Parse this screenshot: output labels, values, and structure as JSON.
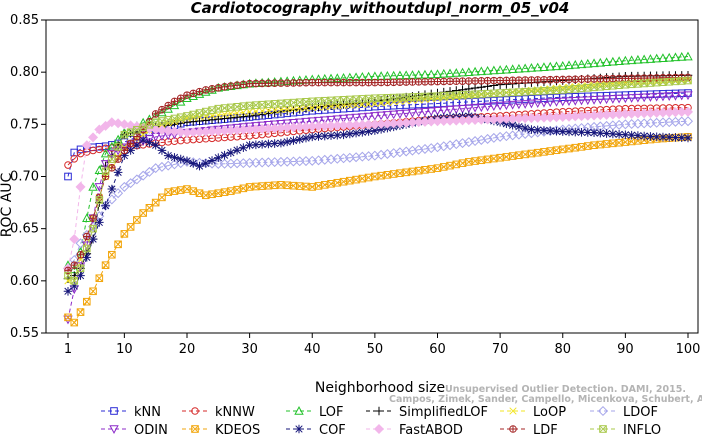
{
  "chart_data": {
    "type": "line",
    "title": "Cardiotocography_withoutdupl_norm_05_v04",
    "xlabel": "Neighborhood size",
    "ylabel": "ROC AUC",
    "xlim": [
      1,
      100
    ],
    "ylim": [
      0.55,
      0.85
    ],
    "xticks": [
      1,
      10,
      20,
      30,
      40,
      50,
      60,
      70,
      80,
      90,
      100
    ],
    "yticks": [
      0.55,
      0.6,
      0.65,
      0.7,
      0.75,
      0.8,
      0.85
    ],
    "ytick_labels": [
      "0.55",
      "0.60",
      "0.65",
      "0.70",
      "0.75",
      "0.80",
      "0.85"
    ],
    "grid": false,
    "legend_position": "bottom",
    "watermark": [
      "Unsupervised Outlier Detection. DAMI, 2015.",
      "Campos, Zimek, Sander, Campello, Micenkova, Schubert, Assent, Houle"
    ],
    "series": [
      {
        "name": "kNN",
        "color": "#2b2bd6",
        "marker": "square",
        "points": [
          [
            1,
            0.7
          ],
          [
            2,
            0.723
          ],
          [
            3,
            0.726
          ],
          [
            5,
            0.728
          ],
          [
            7,
            0.729
          ],
          [
            10,
            0.733
          ],
          [
            15,
            0.745
          ],
          [
            20,
            0.752
          ],
          [
            30,
            0.757
          ],
          [
            40,
            0.763
          ],
          [
            50,
            0.767
          ],
          [
            60,
            0.77
          ],
          [
            70,
            0.773
          ],
          [
            80,
            0.776
          ],
          [
            90,
            0.778
          ],
          [
            100,
            0.78
          ]
        ]
      },
      {
        "name": "kNNW",
        "color": "#d62a2a",
        "marker": "circle",
        "points": [
          [
            1,
            0.711
          ],
          [
            2,
            0.717
          ],
          [
            3,
            0.722
          ],
          [
            5,
            0.725
          ],
          [
            7,
            0.727
          ],
          [
            10,
            0.728
          ],
          [
            15,
            0.732
          ],
          [
            20,
            0.735
          ],
          [
            30,
            0.739
          ],
          [
            40,
            0.745
          ],
          [
            50,
            0.75
          ],
          [
            60,
            0.755
          ],
          [
            70,
            0.758
          ],
          [
            80,
            0.762
          ],
          [
            90,
            0.765
          ],
          [
            100,
            0.766
          ]
        ]
      },
      {
        "name": "LOF",
        "color": "#22c22a",
        "marker": "triangle-up",
        "points": [
          [
            1,
            0.615
          ],
          [
            2,
            0.611
          ],
          [
            3,
            0.628
          ],
          [
            4,
            0.66
          ],
          [
            5,
            0.69
          ],
          [
            7,
            0.722
          ],
          [
            10,
            0.742
          ],
          [
            15,
            0.758
          ],
          [
            20,
            0.775
          ],
          [
            25,
            0.785
          ],
          [
            30,
            0.789
          ],
          [
            40,
            0.793
          ],
          [
            50,
            0.796
          ],
          [
            60,
            0.798
          ],
          [
            70,
            0.802
          ],
          [
            80,
            0.806
          ],
          [
            90,
            0.811
          ],
          [
            100,
            0.815
          ]
        ]
      },
      {
        "name": "SimplifiedLOF",
        "color": "#000000",
        "marker": "plus",
        "points": [
          [
            1,
            0.602
          ],
          [
            2,
            0.605
          ],
          [
            3,
            0.612
          ],
          [
            5,
            0.64
          ],
          [
            7,
            0.71
          ],
          [
            10,
            0.74
          ],
          [
            15,
            0.747
          ],
          [
            20,
            0.752
          ],
          [
            30,
            0.758
          ],
          [
            40,
            0.766
          ],
          [
            50,
            0.772
          ],
          [
            60,
            0.78
          ],
          [
            70,
            0.788
          ],
          [
            80,
            0.792
          ],
          [
            90,
            0.796
          ],
          [
            100,
            0.797
          ]
        ]
      },
      {
        "name": "LoOP",
        "color": "#f2e422",
        "marker": "x",
        "points": [
          [
            1,
            0.6
          ],
          [
            2,
            0.6
          ],
          [
            3,
            0.62
          ],
          [
            5,
            0.66
          ],
          [
            7,
            0.7
          ],
          [
            10,
            0.728
          ],
          [
            15,
            0.748
          ],
          [
            20,
            0.756
          ],
          [
            30,
            0.762
          ],
          [
            40,
            0.766
          ],
          [
            50,
            0.77
          ],
          [
            60,
            0.775
          ],
          [
            70,
            0.78
          ],
          [
            80,
            0.785
          ],
          [
            90,
            0.79
          ],
          [
            100,
            0.793
          ]
        ]
      },
      {
        "name": "LDOF",
        "color": "#a6a6ea",
        "marker": "diamond",
        "points": [
          [
            1,
            0.612
          ],
          [
            2,
            0.62
          ],
          [
            3,
            0.636
          ],
          [
            5,
            0.652
          ],
          [
            7,
            0.672
          ],
          [
            10,
            0.69
          ],
          [
            15,
            0.708
          ],
          [
            20,
            0.714
          ],
          [
            25,
            0.712
          ],
          [
            30,
            0.713
          ],
          [
            40,
            0.715
          ],
          [
            50,
            0.72
          ],
          [
            60,
            0.728
          ],
          [
            70,
            0.738
          ],
          [
            80,
            0.745
          ],
          [
            90,
            0.75
          ],
          [
            100,
            0.753
          ]
        ]
      },
      {
        "name": "ODIN",
        "color": "#8c2bc9",
        "marker": "triangle-down",
        "points": [
          [
            1,
            0.563
          ],
          [
            2,
            0.592
          ],
          [
            3,
            0.614
          ],
          [
            4,
            0.634
          ],
          [
            5,
            0.66
          ],
          [
            6,
            0.69
          ],
          [
            7,
            0.712
          ],
          [
            8,
            0.722
          ],
          [
            10,
            0.728
          ],
          [
            15,
            0.738
          ],
          [
            20,
            0.742
          ],
          [
            30,
            0.748
          ],
          [
            40,
            0.753
          ],
          [
            50,
            0.758
          ],
          [
            60,
            0.763
          ],
          [
            70,
            0.768
          ],
          [
            80,
            0.772
          ],
          [
            90,
            0.775
          ],
          [
            100,
            0.778
          ]
        ]
      },
      {
        "name": "KDEOS",
        "color": "#f2a60c",
        "marker": "square-x",
        "points": [
          [
            1,
            0.565
          ],
          [
            2,
            0.56
          ],
          [
            3,
            0.57
          ],
          [
            5,
            0.59
          ],
          [
            7,
            0.615
          ],
          [
            10,
            0.645
          ],
          [
            13,
            0.665
          ],
          [
            15,
            0.675
          ],
          [
            17,
            0.685
          ],
          [
            20,
            0.688
          ],
          [
            23,
            0.682
          ],
          [
            27,
            0.686
          ],
          [
            30,
            0.69
          ],
          [
            35,
            0.692
          ],
          [
            40,
            0.69
          ],
          [
            45,
            0.695
          ],
          [
            50,
            0.7
          ],
          [
            55,
            0.704
          ],
          [
            60,
            0.708
          ],
          [
            65,
            0.714
          ],
          [
            70,
            0.718
          ],
          [
            75,
            0.722
          ],
          [
            80,
            0.726
          ],
          [
            85,
            0.73
          ],
          [
            90,
            0.733
          ],
          [
            95,
            0.736
          ],
          [
            100,
            0.738
          ]
        ]
      },
      {
        "name": "COF",
        "color": "#16167a",
        "marker": "asterisk",
        "points": [
          [
            1,
            0.59
          ],
          [
            2,
            0.595
          ],
          [
            3,
            0.605
          ],
          [
            5,
            0.64
          ],
          [
            7,
            0.672
          ],
          [
            10,
            0.72
          ],
          [
            13,
            0.735
          ],
          [
            15,
            0.73
          ],
          [
            17,
            0.72
          ],
          [
            20,
            0.715
          ],
          [
            22,
            0.71
          ],
          [
            25,
            0.718
          ],
          [
            30,
            0.73
          ],
          [
            35,
            0.732
          ],
          [
            40,
            0.738
          ],
          [
            45,
            0.74
          ],
          [
            50,
            0.744
          ],
          [
            55,
            0.75
          ],
          [
            60,
            0.756
          ],
          [
            65,
            0.758
          ],
          [
            70,
            0.752
          ],
          [
            75,
            0.745
          ],
          [
            80,
            0.743
          ],
          [
            85,
            0.742
          ],
          [
            90,
            0.74
          ],
          [
            95,
            0.738
          ],
          [
            100,
            0.737
          ]
        ]
      },
      {
        "name": "FastABOD",
        "color": "#f2b6ea",
        "marker": "diamond-filled",
        "points": [
          [
            1,
            0.612
          ],
          [
            2,
            0.64
          ],
          [
            3,
            0.69
          ],
          [
            4,
            0.73
          ],
          [
            6,
            0.745
          ],
          [
            8,
            0.752
          ],
          [
            10,
            0.75
          ],
          [
            15,
            0.745
          ],
          [
            20,
            0.742
          ],
          [
            30,
            0.745
          ],
          [
            40,
            0.748
          ],
          [
            50,
            0.75
          ],
          [
            60,
            0.753
          ],
          [
            70,
            0.755
          ],
          [
            80,
            0.757
          ],
          [
            90,
            0.76
          ],
          [
            100,
            0.762
          ]
        ]
      },
      {
        "name": "LDF",
        "color": "#a42424",
        "marker": "circle-plus",
        "points": [
          [
            1,
            0.61
          ],
          [
            2,
            0.615
          ],
          [
            3,
            0.625
          ],
          [
            5,
            0.66
          ],
          [
            7,
            0.7
          ],
          [
            10,
            0.725
          ],
          [
            13,
            0.745
          ],
          [
            15,
            0.76
          ],
          [
            18,
            0.772
          ],
          [
            20,
            0.778
          ],
          [
            23,
            0.783
          ],
          [
            26,
            0.786
          ],
          [
            30,
            0.789
          ],
          [
            40,
            0.79
          ],
          [
            50,
            0.79
          ],
          [
            60,
            0.791
          ],
          [
            70,
            0.792
          ],
          [
            80,
            0.793
          ],
          [
            90,
            0.794
          ],
          [
            100,
            0.795
          ]
        ]
      },
      {
        "name": "INFLO",
        "color": "#a8c84a",
        "marker": "square-x",
        "points": [
          [
            1,
            0.605
          ],
          [
            2,
            0.6
          ],
          [
            3,
            0.612
          ],
          [
            5,
            0.65
          ],
          [
            7,
            0.705
          ],
          [
            10,
            0.74
          ],
          [
            15,
            0.752
          ],
          [
            20,
            0.758
          ],
          [
            25,
            0.765
          ],
          [
            30,
            0.768
          ],
          [
            40,
            0.772
          ],
          [
            50,
            0.775
          ],
          [
            60,
            0.777
          ],
          [
            70,
            0.78
          ],
          [
            80,
            0.783
          ],
          [
            90,
            0.788
          ],
          [
            100,
            0.792
          ]
        ]
      }
    ]
  }
}
